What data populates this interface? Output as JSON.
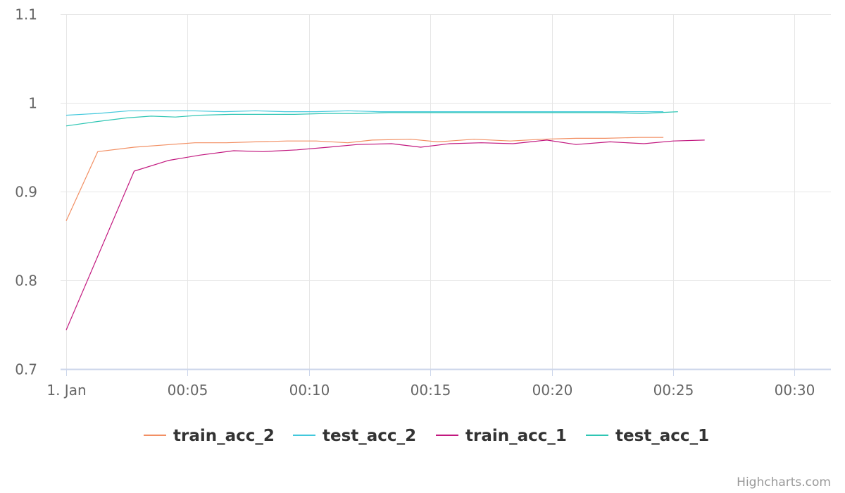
{
  "chart_data": {
    "type": "line",
    "x_axis": {
      "type": "datetime",
      "tick_labels": [
        "1. Jan",
        "00:05",
        "00:10",
        "00:15",
        "00:20",
        "00:25",
        "00:30"
      ],
      "ticks_minutes": [
        0,
        5,
        10,
        15,
        20,
        25,
        30
      ],
      "range_minutes": [
        0,
        31.5
      ]
    },
    "y_axis": {
      "tick_labels": [
        "0.7",
        "0.8",
        "0.9",
        "1",
        "1.1"
      ],
      "ticks": [
        0.7,
        0.8,
        0.9,
        1.0,
        1.1
      ],
      "ylim": [
        0.7,
        1.1
      ]
    },
    "grid": true,
    "legend_position": "bottom-center",
    "series": [
      {
        "name": "train_acc_2",
        "color": "#f28f63",
        "x_minutes": [
          0,
          1.3,
          2.8,
          4.3,
          5.3,
          6.6,
          7.8,
          9.1,
          10.3,
          11.6,
          12.6,
          14.2,
          15.3,
          16.8,
          18.3,
          19.6,
          21.0,
          22.2,
          23.6,
          24.6
        ],
        "values": [
          0.867,
          0.945,
          0.95,
          0.953,
          0.955,
          0.955,
          0.956,
          0.957,
          0.957,
          0.955,
          0.958,
          0.959,
          0.956,
          0.959,
          0.957,
          0.959,
          0.96,
          0.96,
          0.961,
          0.961
        ]
      },
      {
        "name": "test_acc_2",
        "color": "#42c8dc",
        "x_minutes": [
          0,
          1.3,
          2.6,
          3.8,
          5.2,
          6.5,
          7.8,
          9.0,
          10.3,
          11.6,
          12.9,
          14.2,
          15.5,
          16.8,
          18.1,
          19.4,
          20.7,
          22.0,
          23.3,
          24.6
        ],
        "values": [
          0.986,
          0.988,
          0.991,
          0.991,
          0.991,
          0.99,
          0.991,
          0.99,
          0.99,
          0.991,
          0.99,
          0.99,
          0.99,
          0.99,
          0.99,
          0.99,
          0.99,
          0.99,
          0.99,
          0.99
        ]
      },
      {
        "name": "train_acc_1",
        "color": "#c2187f",
        "x_minutes": [
          0,
          2.8,
          4.2,
          5.5,
          6.9,
          8.1,
          9.5,
          10.8,
          12.0,
          13.4,
          14.6,
          15.8,
          17.1,
          18.4,
          19.8,
          21.0,
          22.4,
          23.8,
          25.0,
          26.3
        ],
        "values": [
          0.744,
          0.923,
          0.935,
          0.941,
          0.946,
          0.945,
          0.947,
          0.95,
          0.953,
          0.954,
          0.95,
          0.954,
          0.955,
          0.954,
          0.958,
          0.953,
          0.956,
          0.954,
          0.957,
          0.958
        ]
      },
      {
        "name": "test_acc_1",
        "color": "#2fc6b4",
        "x_minutes": [
          0,
          1.3,
          2.5,
          3.5,
          4.5,
          5.5,
          6.8,
          8.1,
          9.4,
          10.7,
          12.0,
          13.3,
          14.6,
          15.9,
          17.2,
          18.5,
          19.8,
          21.1,
          22.4,
          23.7,
          25.2
        ],
        "values": [
          0.974,
          0.979,
          0.983,
          0.985,
          0.984,
          0.986,
          0.987,
          0.987,
          0.987,
          0.988,
          0.988,
          0.989,
          0.989,
          0.989,
          0.989,
          0.989,
          0.989,
          0.989,
          0.989,
          0.988,
          0.99
        ]
      }
    ]
  },
  "credits": "Highcharts.com"
}
